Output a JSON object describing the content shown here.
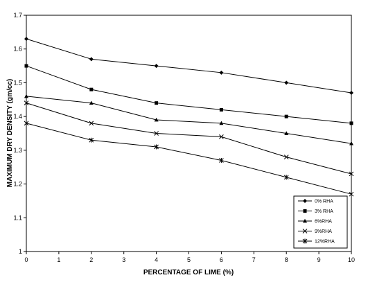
{
  "chart_data": {
    "type": "line",
    "title": "",
    "xlabel": "PERCENTAGE OF LIME (%)",
    "ylabel": "MAXIMUM DRY DENSITY (gm/cc)",
    "xlim": [
      0,
      10
    ],
    "ylim": [
      1,
      1.7
    ],
    "x_ticks": [
      0,
      1,
      2,
      3,
      4,
      5,
      6,
      7,
      8,
      9,
      10
    ],
    "x_tick_labels": [
      "0",
      "1",
      "2",
      "3",
      "4",
      "5",
      "6",
      "7",
      "8",
      "9",
      "10"
    ],
    "y_ticks": [
      1,
      1.1,
      1.2,
      1.3,
      1.4,
      1.5,
      1.6,
      1.7
    ],
    "y_tick_labels": [
      "1",
      "1.1",
      "1.2",
      "1.3",
      "1.4",
      "1.5",
      "1.6",
      "1.7"
    ],
    "grid": false,
    "legend_position": "bottom-right",
    "x": [
      0,
      2,
      4,
      6,
      8,
      10
    ],
    "series": [
      {
        "name": "0% RHA",
        "marker": "diamond",
        "values": [
          1.63,
          1.57,
          1.55,
          1.53,
          1.5,
          1.47
        ]
      },
      {
        "name": "3% RHA",
        "marker": "square",
        "values": [
          1.55,
          1.48,
          1.44,
          1.42,
          1.4,
          1.38
        ]
      },
      {
        "name": "6%RHA",
        "marker": "triangle",
        "values": [
          1.46,
          1.44,
          1.39,
          1.38,
          1.35,
          1.32
        ]
      },
      {
        "name": "9%RHA",
        "marker": "x",
        "values": [
          1.44,
          1.38,
          1.35,
          1.34,
          1.28,
          1.23
        ]
      },
      {
        "name": "12%RHA",
        "marker": "star",
        "values": [
          1.38,
          1.33,
          1.31,
          1.27,
          1.22,
          1.17
        ]
      }
    ]
  }
}
